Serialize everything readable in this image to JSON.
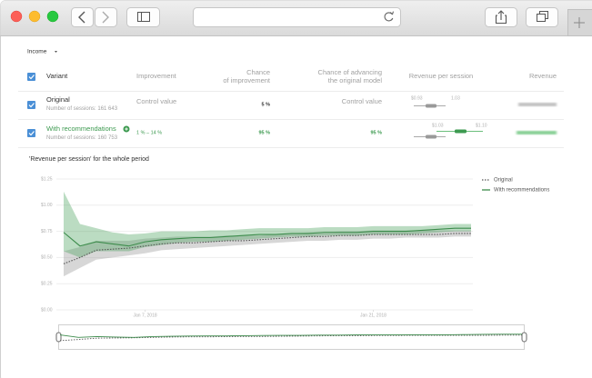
{
  "page": {
    "filter": "Income",
    "table": {
      "headers": [
        [
          "Variant"
        ],
        [
          "Improvement"
        ],
        [
          "Chance",
          "of improvement"
        ],
        [
          "Chance of advancing",
          "the original model"
        ],
        [
          "Revenue per session"
        ],
        [
          "Revenue"
        ]
      ],
      "rows": [
        {
          "name": "Original",
          "sessions": "Number of sessions: 161 643",
          "improvement": "Control value",
          "chance": "5 %",
          "advancing": "Control value",
          "rps_labels": [
            "$0.93",
            "1.03"
          ]
        },
        {
          "name": "With recommendations",
          "sessions": "Number of sessions: 160 753",
          "improvement": "1 % – 14 %",
          "chance": "95 %",
          "advancing": "95 %",
          "rps_labels": [
            "$1.03",
            "$1.10"
          ]
        }
      ]
    }
  },
  "chart_data": {
    "type": "line",
    "title": "'Revenue per session' for the whole period",
    "ylim": [
      0,
      1.25
    ],
    "yticks": [
      {
        "value": 0,
        "label": "$0.00"
      },
      {
        "value": 0.25,
        "label": "$0.25"
      },
      {
        "value": 0.5,
        "label": "$0.50"
      },
      {
        "value": 0.75,
        "label": "$0.75"
      },
      {
        "value": 1,
        "label": "$1.00"
      },
      {
        "value": 1.25,
        "label": "$1.25"
      }
    ],
    "xlim": [
      0,
      25
    ],
    "xticks": [
      {
        "value": 5,
        "label": "Jan 7, 2018"
      },
      {
        "value": 19,
        "label": "Jan 21, 2018"
      }
    ],
    "grid": true,
    "legend": "top-right",
    "series": [
      {
        "name": "Original",
        "color": "#555555",
        "band_color": "#8c8c8c",
        "dashed": true,
        "values": [
          0.44,
          0.5,
          0.57,
          0.58,
          0.59,
          0.61,
          0.63,
          0.64,
          0.64,
          0.65,
          0.66,
          0.66,
          0.67,
          0.68,
          0.69,
          0.7,
          0.7,
          0.71,
          0.71,
          0.72,
          0.72,
          0.72,
          0.72,
          0.72,
          0.73,
          0.73
        ],
        "lower": [
          0.32,
          0.4,
          0.48,
          0.5,
          0.52,
          0.54,
          0.57,
          0.58,
          0.59,
          0.6,
          0.61,
          0.62,
          0.63,
          0.64,
          0.65,
          0.66,
          0.66,
          0.67,
          0.67,
          0.68,
          0.68,
          0.69,
          0.69,
          0.69,
          0.7,
          0.7
        ],
        "upper": [
          0.56,
          0.6,
          0.66,
          0.66,
          0.66,
          0.68,
          0.69,
          0.7,
          0.7,
          0.7,
          0.71,
          0.71,
          0.71,
          0.72,
          0.73,
          0.74,
          0.74,
          0.75,
          0.75,
          0.76,
          0.76,
          0.76,
          0.76,
          0.76,
          0.76,
          0.76
        ]
      },
      {
        "name": "With recommendations",
        "color": "#3d8c4c",
        "band_color": "#3d9a50",
        "dashed": false,
        "values": [
          0.74,
          0.61,
          0.65,
          0.63,
          0.61,
          0.65,
          0.67,
          0.68,
          0.69,
          0.69,
          0.7,
          0.71,
          0.72,
          0.72,
          0.73,
          0.73,
          0.74,
          0.74,
          0.74,
          0.75,
          0.75,
          0.75,
          0.76,
          0.77,
          0.78,
          0.78
        ],
        "lower": [
          0.56,
          0.5,
          0.56,
          0.56,
          0.56,
          0.6,
          0.62,
          0.64,
          0.65,
          0.65,
          0.66,
          0.67,
          0.68,
          0.69,
          0.7,
          0.7,
          0.71,
          0.71,
          0.71,
          0.72,
          0.72,
          0.72,
          0.73,
          0.74,
          0.75,
          0.75
        ],
        "upper": [
          1.13,
          0.82,
          0.78,
          0.74,
          0.72,
          0.73,
          0.75,
          0.75,
          0.75,
          0.76,
          0.76,
          0.77,
          0.78,
          0.78,
          0.78,
          0.78,
          0.79,
          0.79,
          0.79,
          0.8,
          0.8,
          0.8,
          0.8,
          0.81,
          0.82,
          0.82
        ]
      }
    ]
  }
}
